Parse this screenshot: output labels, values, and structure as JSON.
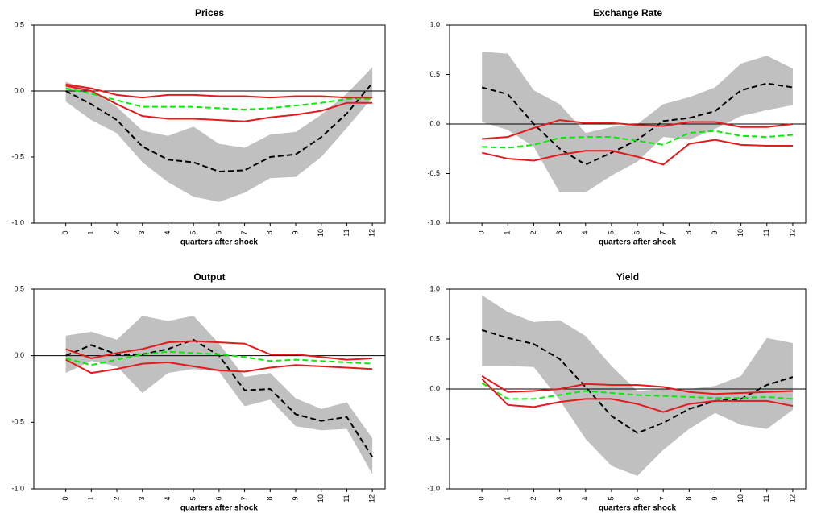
{
  "chart_data": [
    {
      "type": "line",
      "title": "Prices",
      "xlabel": "quarters after shock",
      "x": [
        0,
        1,
        2,
        3,
        4,
        5,
        6,
        7,
        8,
        9,
        10,
        11,
        12
      ],
      "xlim": [
        -1.25,
        12.5
      ],
      "xticks": [
        0,
        1,
        2,
        3,
        4,
        5,
        6,
        7,
        8,
        9,
        10,
        11,
        12
      ],
      "ylim": [
        -1.0,
        0.5
      ],
      "yticks": [
        {
          "value": -1.0,
          "label": "-1.0"
        },
        -0.5,
        {
          "value": 0,
          "label": "0.0"
        },
        0.5
      ],
      "reference_line": 0,
      "band": {
        "color": "#c0c0c0",
        "upper": [
          0.07,
          0.0,
          -0.12,
          -0.3,
          -0.34,
          -0.27,
          -0.4,
          -0.43,
          -0.33,
          -0.31,
          -0.18,
          -0.02,
          0.18
        ],
        "lower": [
          -0.08,
          -0.22,
          -0.32,
          -0.54,
          -0.69,
          -0.8,
          -0.84,
          -0.77,
          -0.66,
          -0.65,
          -0.5,
          -0.28,
          -0.05
        ]
      },
      "series": [
        {
          "color": "#000000",
          "dashed": true,
          "values": [
            0.0,
            -0.1,
            -0.22,
            -0.42,
            -0.52,
            -0.54,
            -0.61,
            -0.6,
            -0.5,
            -0.48,
            -0.35,
            -0.17,
            0.06
          ]
        },
        {
          "color": "#00ee00",
          "dashed": true,
          "values": [
            0.02,
            -0.02,
            -0.07,
            -0.12,
            -0.12,
            -0.12,
            -0.13,
            -0.14,
            -0.13,
            -0.11,
            -0.09,
            -0.06,
            -0.06
          ]
        },
        {
          "color": "#e41a1c",
          "dashed": false,
          "values": [
            0.05,
            0.02,
            -0.03,
            -0.05,
            -0.03,
            -0.03,
            -0.04,
            -0.04,
            -0.05,
            -0.04,
            -0.04,
            -0.05,
            -0.05
          ]
        },
        {
          "color": "#e41a1c",
          "dashed": false,
          "values": [
            0.04,
            0.0,
            -0.1,
            -0.19,
            -0.21,
            -0.21,
            -0.22,
            -0.23,
            -0.2,
            -0.18,
            -0.15,
            -0.09,
            -0.09
          ]
        }
      ]
    },
    {
      "type": "line",
      "title": "Exchange Rate",
      "xlabel": "quarters after shock",
      "x": [
        0,
        1,
        2,
        3,
        4,
        5,
        6,
        7,
        8,
        9,
        10,
        11,
        12
      ],
      "xlim": [
        -1.25,
        12.5
      ],
      "xticks": [
        0,
        1,
        2,
        3,
        4,
        5,
        6,
        7,
        8,
        9,
        10,
        11,
        12
      ],
      "ylim": [
        -1.0,
        1.0
      ],
      "yticks": [
        {
          "value": -1.0,
          "label": "-1.0"
        },
        -0.5,
        {
          "value": 0,
          "label": "0.0"
        },
        0.5,
        {
          "value": 1.0,
          "label": "1.0"
        }
      ],
      "reference_line": 0,
      "band": {
        "color": "#c0c0c0",
        "upper": [
          0.73,
          0.71,
          0.34,
          0.2,
          -0.09,
          -0.03,
          0.0,
          0.2,
          0.27,
          0.37,
          0.61,
          0.69,
          0.56
        ],
        "lower": [
          0.02,
          -0.06,
          -0.23,
          -0.69,
          -0.69,
          -0.52,
          -0.38,
          -0.13,
          -0.16,
          -0.05,
          0.08,
          0.14,
          0.19
        ]
      },
      "series": [
        {
          "color": "#000000",
          "dashed": true,
          "values": [
            0.37,
            0.3,
            0.0,
            -0.25,
            -0.41,
            -0.29,
            -0.16,
            0.03,
            0.06,
            0.13,
            0.34,
            0.41,
            0.37
          ]
        },
        {
          "color": "#00ee00",
          "dashed": true,
          "values": [
            -0.23,
            -0.24,
            -0.21,
            -0.14,
            -0.13,
            -0.13,
            -0.17,
            -0.21,
            -0.09,
            -0.07,
            -0.12,
            -0.13,
            -0.11
          ]
        },
        {
          "color": "#e41a1c",
          "dashed": false,
          "values": [
            -0.15,
            -0.13,
            -0.04,
            0.04,
            0.01,
            0.01,
            -0.01,
            -0.02,
            0.02,
            0.02,
            -0.03,
            -0.03,
            0.0
          ]
        },
        {
          "color": "#e41a1c",
          "dashed": false,
          "values": [
            -0.29,
            -0.35,
            -0.37,
            -0.31,
            -0.27,
            -0.27,
            -0.33,
            -0.41,
            -0.2,
            -0.16,
            -0.21,
            -0.22,
            -0.22
          ]
        }
      ]
    },
    {
      "type": "line",
      "title": "Output",
      "xlabel": "quarters after shock",
      "x": [
        0,
        1,
        2,
        3,
        4,
        5,
        6,
        7,
        8,
        9,
        10,
        11,
        12
      ],
      "xlim": [
        -1.25,
        12.5
      ],
      "xticks": [
        0,
        1,
        2,
        3,
        4,
        5,
        6,
        7,
        8,
        9,
        10,
        11,
        12
      ],
      "ylim": [
        -1.0,
        0.5
      ],
      "yticks": [
        {
          "value": -1.0,
          "label": "-1.0"
        },
        -0.5,
        {
          "value": 0,
          "label": "0.0"
        },
        0.5
      ],
      "reference_line": 0,
      "band": {
        "color": "#c0c0c0",
        "upper": [
          0.15,
          0.18,
          0.12,
          0.3,
          0.26,
          0.3,
          0.09,
          -0.16,
          -0.13,
          -0.32,
          -0.4,
          -0.35,
          -0.62
        ],
        "lower": [
          -0.13,
          -0.04,
          -0.08,
          -0.28,
          -0.13,
          -0.1,
          -0.12,
          -0.38,
          -0.33,
          -0.53,
          -0.56,
          -0.55,
          -0.89
        ]
      },
      "series": [
        {
          "color": "#000000",
          "dashed": true,
          "values": [
            0.0,
            0.08,
            0.01,
            0.01,
            0.05,
            0.12,
            0.0,
            -0.26,
            -0.25,
            -0.44,
            -0.49,
            -0.46,
            -0.76
          ]
        },
        {
          "color": "#00ee00",
          "dashed": true,
          "values": [
            -0.02,
            -0.07,
            -0.03,
            0.01,
            0.03,
            0.02,
            0.01,
            -0.01,
            -0.04,
            -0.03,
            -0.04,
            -0.05,
            -0.06
          ]
        },
        {
          "color": "#e41a1c",
          "dashed": false,
          "values": [
            0.05,
            -0.02,
            0.02,
            0.05,
            0.1,
            0.11,
            0.1,
            0.09,
            0.01,
            0.01,
            -0.01,
            -0.03,
            -0.02
          ]
        },
        {
          "color": "#e41a1c",
          "dashed": false,
          "values": [
            -0.03,
            -0.13,
            -0.1,
            -0.06,
            -0.05,
            -0.08,
            -0.11,
            -0.12,
            -0.09,
            -0.07,
            -0.08,
            -0.09,
            -0.1
          ]
        }
      ]
    },
    {
      "type": "line",
      "title": "Yield",
      "xlabel": "quarters after shock",
      "x": [
        0,
        1,
        2,
        3,
        4,
        5,
        6,
        7,
        8,
        9,
        10,
        11,
        12
      ],
      "xlim": [
        -1.25,
        12.5
      ],
      "xticks": [
        0,
        1,
        2,
        3,
        4,
        5,
        6,
        7,
        8,
        9,
        10,
        11,
        12
      ],
      "ylim": [
        -1.0,
        1.0
      ],
      "yticks": [
        {
          "value": -1.0,
          "label": "-1.0"
        },
        -0.5,
        {
          "value": 0,
          "label": "0.0"
        },
        0.5,
        {
          "value": 1.0,
          "label": "1.0"
        }
      ],
      "reference_line": 0,
      "band": {
        "color": "#c0c0c0",
        "upper": [
          0.94,
          0.77,
          0.67,
          0.69,
          0.53,
          0.23,
          -0.02,
          0.0,
          0.0,
          0.03,
          0.13,
          0.51,
          0.46
        ],
        "lower": [
          0.23,
          0.23,
          0.22,
          -0.11,
          -0.5,
          -0.77,
          -0.87,
          -0.61,
          -0.4,
          -0.24,
          -0.36,
          -0.4,
          -0.21
        ]
      },
      "series": [
        {
          "color": "#000000",
          "dashed": true,
          "values": [
            0.59,
            0.51,
            0.45,
            0.3,
            0.02,
            -0.27,
            -0.44,
            -0.34,
            -0.2,
            -0.12,
            -0.1,
            0.04,
            0.12
          ]
        },
        {
          "color": "#00ee00",
          "dashed": true,
          "values": [
            0.06,
            -0.1,
            -0.1,
            -0.06,
            -0.02,
            -0.04,
            -0.06,
            -0.07,
            -0.08,
            -0.09,
            -0.09,
            -0.08,
            -0.1
          ]
        },
        {
          "color": "#e41a1c",
          "dashed": false,
          "values": [
            0.13,
            -0.03,
            -0.02,
            0.0,
            0.05,
            0.04,
            0.04,
            0.02,
            -0.03,
            -0.05,
            -0.04,
            -0.03,
            -0.02
          ]
        },
        {
          "color": "#e41a1c",
          "dashed": false,
          "values": [
            0.1,
            -0.16,
            -0.18,
            -0.13,
            -0.1,
            -0.1,
            -0.15,
            -0.23,
            -0.15,
            -0.12,
            -0.12,
            -0.12,
            -0.17
          ]
        }
      ]
    }
  ]
}
